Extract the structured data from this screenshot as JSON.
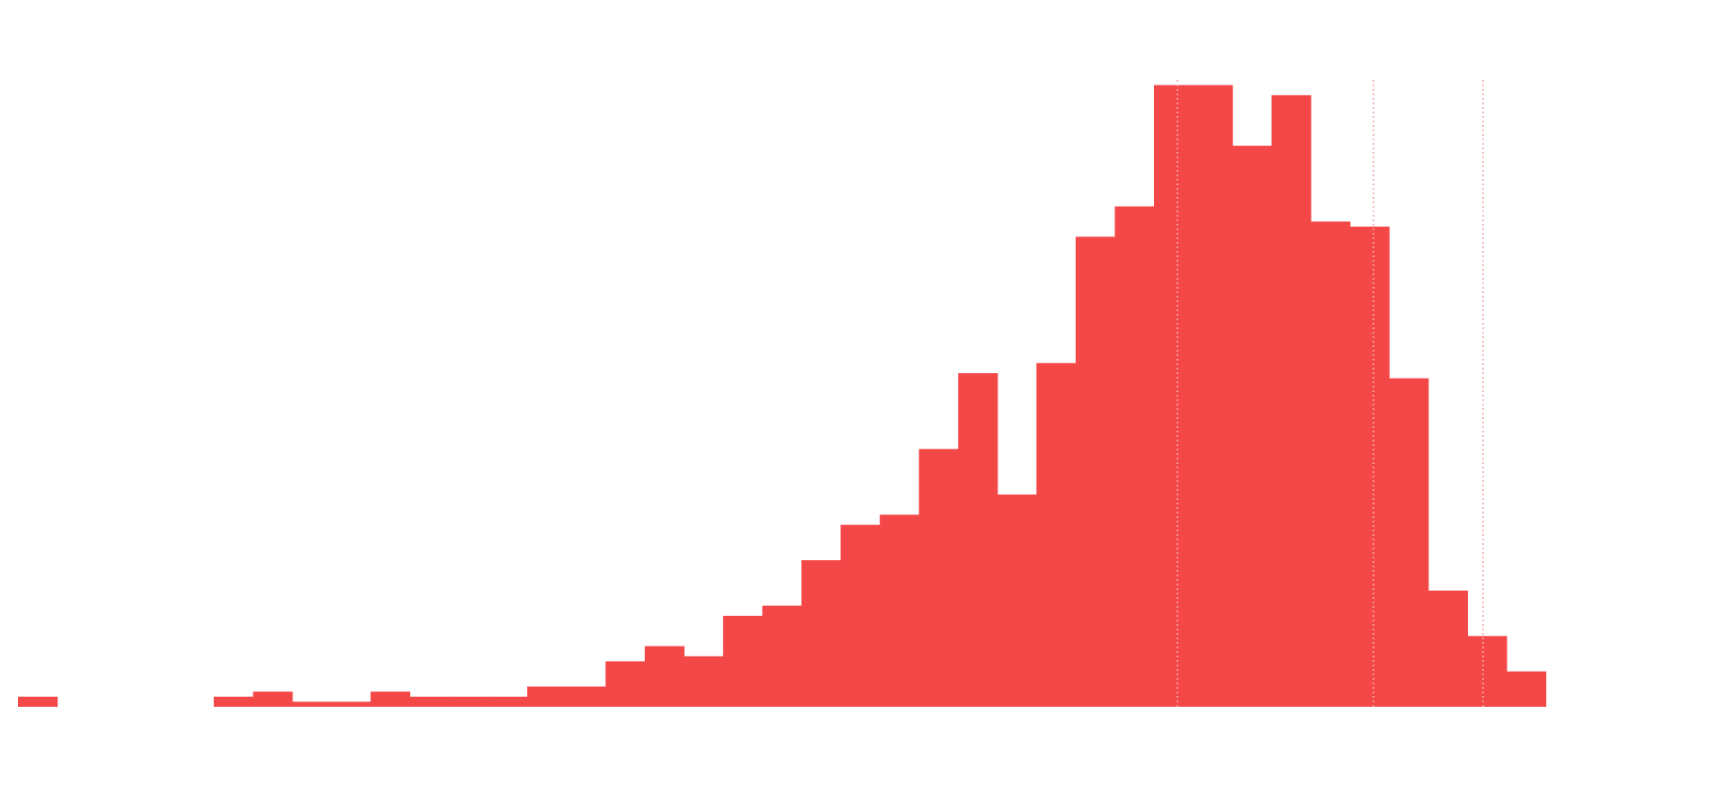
{
  "chart_data": {
    "type": "bar",
    "title": "",
    "xlabel": "",
    "ylabel": "",
    "grid": false,
    "legend": "none",
    "bar_color": "#F44848",
    "marker_color": "#F3A8A8",
    "ylim": [
      0,
      124
    ],
    "bins": {
      "count": 40,
      "values": [
        2,
        0,
        0,
        0,
        0,
        2,
        3,
        1,
        1,
        3,
        2,
        2,
        2,
        4,
        4,
        9,
        12,
        10,
        18,
        20,
        29,
        36,
        38,
        51,
        66,
        42,
        68,
        93,
        99,
        123,
        123,
        111,
        121,
        96,
        95,
        65,
        23,
        14,
        7,
        null
      ]
    },
    "markers": [
      {
        "bin_position": 29.6
      },
      {
        "bin_position": 34.6
      },
      {
        "bin_position": 37.4
      }
    ]
  }
}
